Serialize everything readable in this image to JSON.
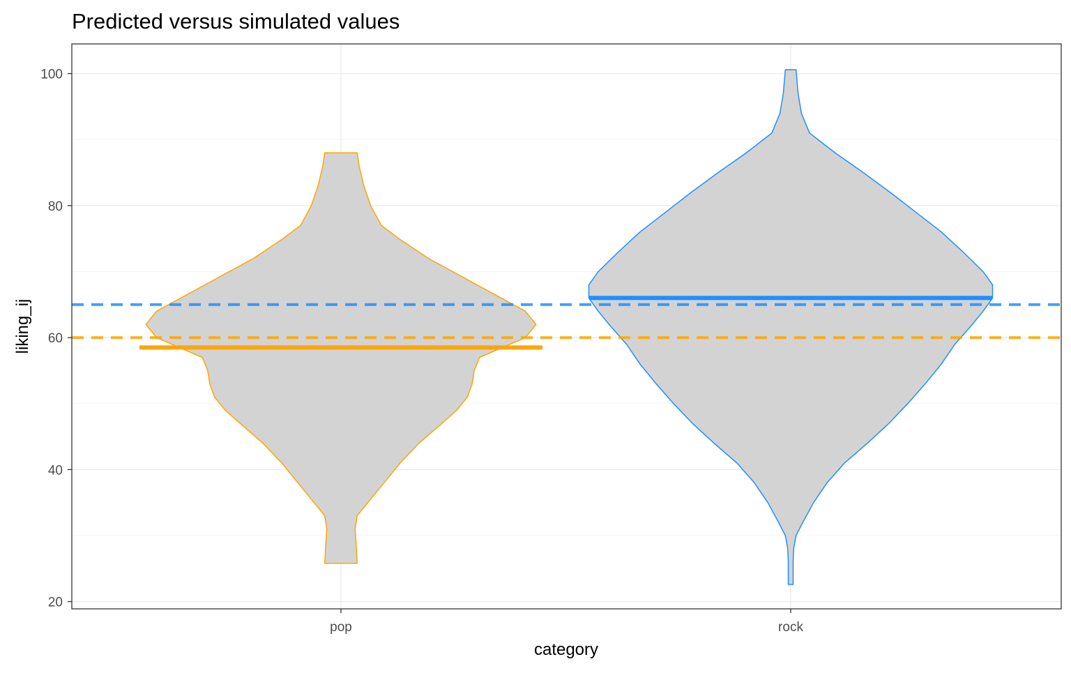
{
  "chart_data": {
    "type": "violin",
    "title": "Predicted versus simulated values",
    "xlabel": "category",
    "ylabel": "liking_ij",
    "categories": [
      "pop",
      "rock"
    ],
    "y_ticks": [
      20,
      40,
      60,
      80,
      100
    ],
    "ylim": [
      18.9,
      104.5
    ],
    "grid": true,
    "fill_color": "#d3d3d3",
    "series": [
      {
        "category": "pop",
        "color": "#FFA500",
        "y_min": 25.8,
        "y_max": 88.0,
        "predicted_mean": 58.5,
        "simulated_mean": 60,
        "density_profile": [
          [
            25.8,
            0.12
          ],
          [
            28,
            0.115
          ],
          [
            31,
            0.105
          ],
          [
            33,
            0.12
          ],
          [
            35,
            0.2
          ],
          [
            38,
            0.32
          ],
          [
            41,
            0.44
          ],
          [
            44,
            0.58
          ],
          [
            47,
            0.75
          ],
          [
            49,
            0.86
          ],
          [
            51,
            0.94
          ],
          [
            53,
            0.975
          ],
          [
            55,
            0.99
          ],
          [
            57,
            1.03
          ],
          [
            58.5,
            1.2
          ],
          [
            60,
            1.37
          ],
          [
            62,
            1.45
          ],
          [
            64,
            1.37
          ],
          [
            66,
            1.19
          ],
          [
            69,
            0.92
          ],
          [
            72,
            0.65
          ],
          [
            75,
            0.43
          ],
          [
            77,
            0.3
          ],
          [
            80,
            0.22
          ],
          [
            83,
            0.17
          ],
          [
            86,
            0.135
          ],
          [
            88,
            0.12
          ]
        ]
      },
      {
        "category": "rock",
        "color": "#1E90FF",
        "y_min": 22.6,
        "y_max": 100.6,
        "predicted_mean": 66,
        "simulated_mean": 65,
        "density_profile": [
          [
            22.6,
            0.018
          ],
          [
            26,
            0.018
          ],
          [
            28,
            0.022
          ],
          [
            30,
            0.04
          ],
          [
            32,
            0.09
          ],
          [
            35,
            0.17
          ],
          [
            38,
            0.27
          ],
          [
            41,
            0.4
          ],
          [
            44,
            0.57
          ],
          [
            47,
            0.73
          ],
          [
            50,
            0.87
          ],
          [
            53,
            1.0
          ],
          [
            56,
            1.12
          ],
          [
            59,
            1.22
          ],
          [
            62,
            1.35
          ],
          [
            64,
            1.43
          ],
          [
            66,
            1.5
          ],
          [
            68,
            1.5
          ],
          [
            70,
            1.43
          ],
          [
            73,
            1.28
          ],
          [
            76,
            1.12
          ],
          [
            79,
            0.93
          ],
          [
            82,
            0.74
          ],
          [
            85,
            0.54
          ],
          [
            88,
            0.33
          ],
          [
            91,
            0.14
          ],
          [
            94,
            0.08
          ],
          [
            97,
            0.055
          ],
          [
            100.6,
            0.04
          ]
        ]
      }
    ]
  }
}
